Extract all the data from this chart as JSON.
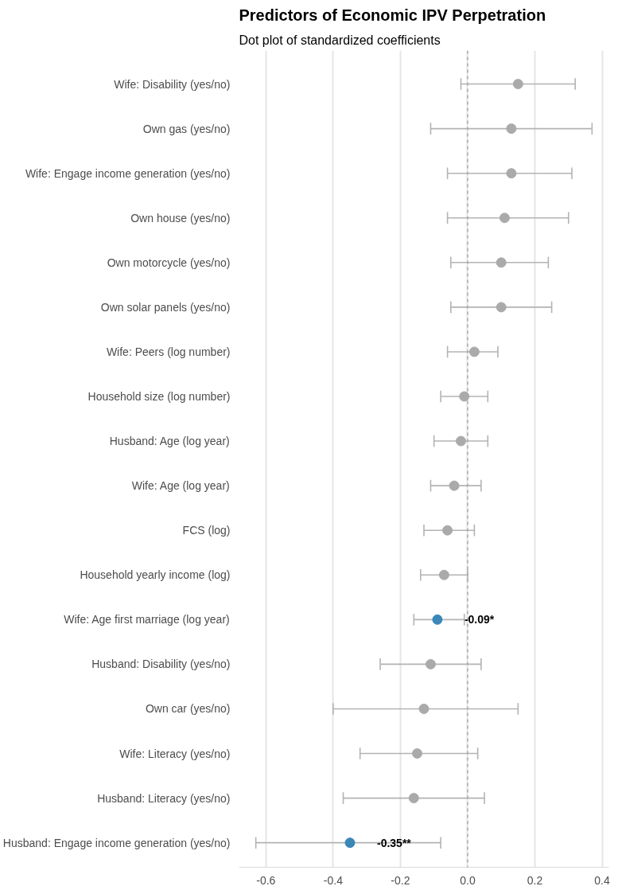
{
  "chart_data": {
    "type": "scatter",
    "orientation": "horizontal",
    "title": "Predictors of Economic IPV Perpetration",
    "subtitle": "Dot plot of standardized coefficients",
    "categories": [
      "Wife: Disability (yes/no)",
      "Own gas (yes/no)",
      "Wife: Engage income generation (yes/no)",
      "Own house (yes/no)",
      "Own motorcycle (yes/no)",
      "Own solar panels (yes/no)",
      "Wife: Peers (log number)",
      "Household size (log number)",
      "Husband: Age (log year)",
      "Wife: Age (log year)",
      "FCS (log)",
      "Household yearly income (log)",
      "Wife: Age first marriage (log year)",
      "Husband: Disability (yes/no)",
      "Own car (yes/no)",
      "Wife: Literacy (yes/no)",
      "Husband: Literacy (yes/no)",
      "Husband: Engage income generation (yes/no)"
    ],
    "series": [
      {
        "color": "#b3b3b3",
        "values": [
          0.15,
          0.13,
          0.13,
          0.11,
          0.1,
          0.1,
          0.02,
          -0.01,
          -0.02,
          -0.04,
          -0.06,
          -0.07,
          -0.09,
          -0.11,
          -0.13,
          -0.15,
          -0.16,
          -0.35
        ],
        "errors": [
          [
            -0.02,
            0.32
          ],
          [
            -0.11,
            0.37
          ],
          [
            -0.06,
            0.31
          ],
          [
            -0.06,
            0.3
          ],
          [
            -0.05,
            0.24
          ],
          [
            -0.05,
            0.25
          ],
          [
            -0.06,
            0.09
          ],
          [
            -0.08,
            0.06
          ],
          [
            -0.1,
            0.06
          ],
          [
            -0.11,
            0.04
          ],
          [
            -0.13,
            0.02
          ],
          [
            -0.14,
            0.0
          ],
          [
            -0.16,
            -0.01
          ],
          [
            -0.26,
            0.04
          ],
          [
            -0.4,
            0.15
          ],
          [
            -0.32,
            0.03
          ],
          [
            -0.37,
            0.05
          ],
          [
            -0.63,
            -0.08
          ]
        ],
        "colors": [
          "#aaaaaa",
          "#aaaaaa",
          "#aaaaaa",
          "#aaaaaa",
          "#aaaaaa",
          "#aaaaaa",
          "#aaaaaa",
          "#aaaaaa",
          "#aaaaaa",
          "#aaaaaa",
          "#aaaaaa",
          "#aaaaaa",
          "#3a87b8",
          "#aaaaaa",
          "#aaaaaa",
          "#aaaaaa",
          "#aaaaaa",
          "#3a87b8"
        ]
      }
    ],
    "annotations": [
      {
        "text": "-0.09*",
        "x": -0.09,
        "y": "Wife: Age first marriage (log year)"
      },
      {
        "text": "-0.35**",
        "x": -0.35,
        "y": "Husband: Engage income generation (yes/no)"
      }
    ],
    "ref_lines": [
      {
        "axis": "x",
        "value": 0,
        "color": "#aaaaaa",
        "line_style": "dashed"
      }
    ],
    "xlim": [
      -0.68,
      0.42
    ],
    "xticks": [
      -0.6,
      -0.4,
      -0.2,
      {
        "value": 0.0,
        "label": "0.0"
      },
      0.2,
      0.4
    ],
    "grid": "x",
    "marker": "circle"
  }
}
